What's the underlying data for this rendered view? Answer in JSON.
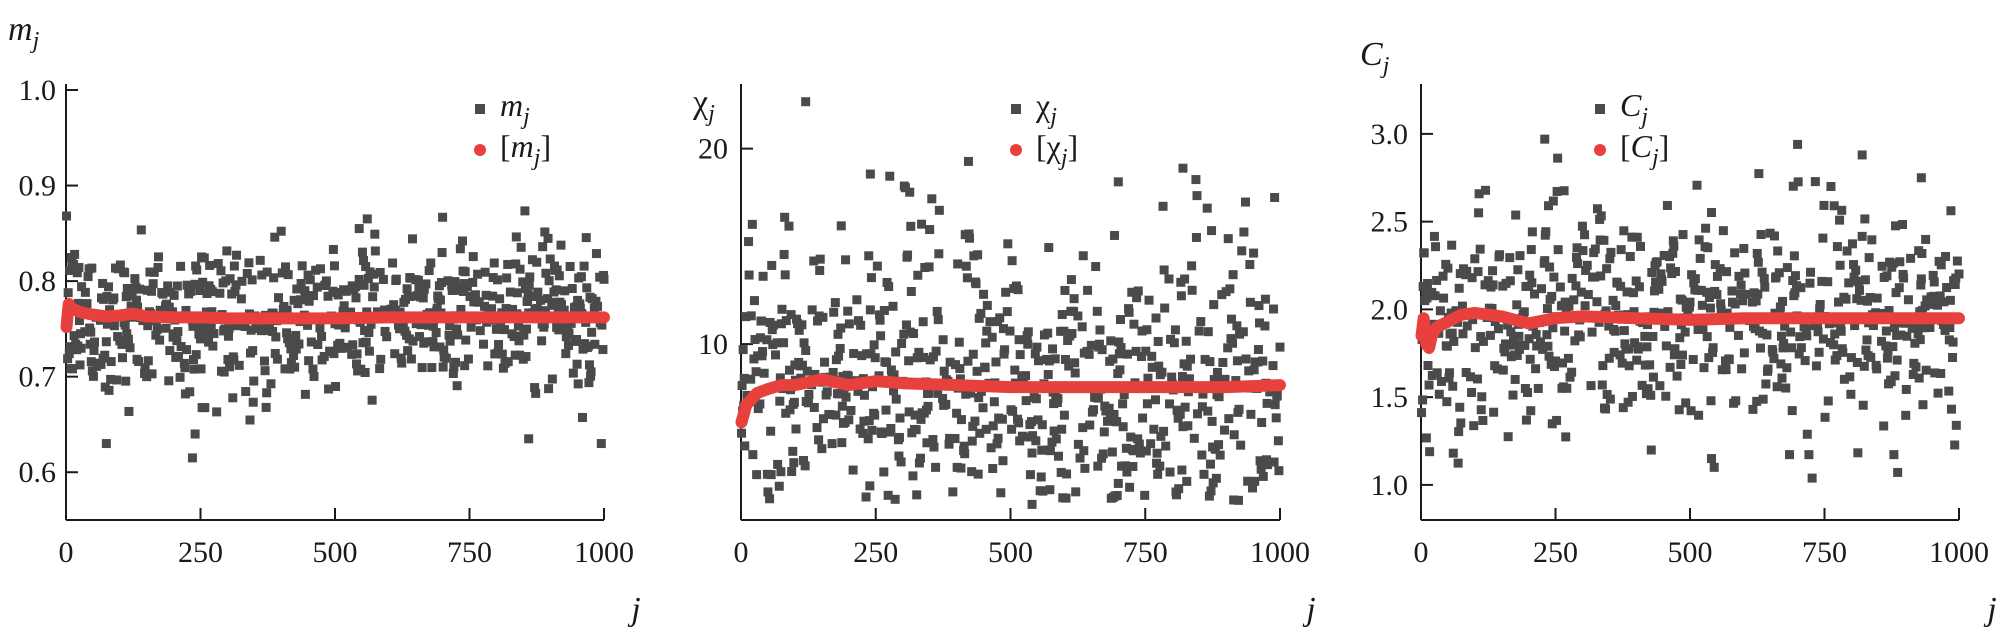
{
  "colors": {
    "scatter": "#4a4a4a",
    "running_mean": "#e8413d",
    "axis": "#1a1a1a"
  },
  "chart_data": [
    {
      "type": "scatter",
      "id": "m",
      "title": "",
      "xlabel": {
        "base": "j",
        "sub": ""
      },
      "ylabel": {
        "base": "m",
        "sub": "j",
        "italic": true
      },
      "xlim": [
        0,
        1000
      ],
      "ylim": [
        0.55,
        1.0
      ],
      "xticks": [
        0,
        250,
        500,
        750,
        1000
      ],
      "xtick_labels": [
        "0",
        "250",
        "500",
        "750",
        "1000"
      ],
      "yticks": [
        0.6,
        0.7,
        0.8,
        0.9,
        1.0
      ],
      "ytick_labels": [
        "0.6",
        "0.7",
        "0.8",
        "0.9",
        "1.0"
      ],
      "grid": false,
      "legend_position": "top-right",
      "series": [
        {
          "name": {
            "pre": "",
            "base": "m",
            "sub": "j",
            "post": "",
            "italic": true
          },
          "marker": "square",
          "n_points": 1000,
          "mean": 0.762,
          "spread": 0.045,
          "outliers": [
            [
              75,
              0.63
            ],
            [
              235,
              0.615
            ],
            [
              240,
              0.64
            ],
            [
              860,
              0.635
            ],
            [
              995,
              0.63
            ],
            [
              545,
              0.855
            ]
          ]
        },
        {
          "name": {
            "pre": "[",
            "base": "m",
            "sub": "j",
            "post": "]",
            "italic": true
          },
          "marker": "circle",
          "type": "line",
          "x": [
            1,
            5,
            10,
            20,
            30,
            50,
            75,
            100,
            125,
            150,
            200,
            250,
            300,
            400,
            500,
            600,
            700,
            800,
            900,
            1000
          ],
          "y": [
            0.752,
            0.776,
            0.772,
            0.769,
            0.767,
            0.765,
            0.763,
            0.764,
            0.766,
            0.763,
            0.762,
            0.762,
            0.761,
            0.761,
            0.761,
            0.762,
            0.762,
            0.762,
            0.762,
            0.762
          ]
        }
      ]
    },
    {
      "type": "scatter",
      "id": "chi",
      "title": "",
      "xlabel": {
        "base": "j",
        "sub": ""
      },
      "ylabel": {
        "base": "χ",
        "sub": "j",
        "italic": false
      },
      "xlim": [
        0,
        1000
      ],
      "ylim": [
        1,
        23
      ],
      "xticks": [
        0,
        250,
        500,
        750,
        1000
      ],
      "xtick_labels": [
        "0",
        "250",
        "500",
        "750",
        "1000"
      ],
      "yticks": [
        10,
        20
      ],
      "ytick_labels": [
        "10",
        "20"
      ],
      "grid": false,
      "legend_position": "top-right",
      "series": [
        {
          "name": {
            "pre": "",
            "base": "χ",
            "sub": "j",
            "post": "",
            "italic": false
          },
          "marker": "square",
          "n_points": 1000,
          "mean": 7.6,
          "spread": 3.2,
          "outliers": [
            [
              120,
              22.4
            ],
            [
              240,
              18.7
            ],
            [
              820,
              19.0
            ],
            [
              700,
              18.3
            ],
            [
              990,
              17.5
            ],
            [
              540,
              1.8
            ],
            [
              555,
              2.5
            ]
          ]
        },
        {
          "name": {
            "pre": "[",
            "base": "χ",
            "sub": "j",
            "post": "]",
            "italic": false
          },
          "marker": "circle",
          "type": "line",
          "x": [
            1,
            5,
            10,
            20,
            30,
            50,
            75,
            100,
            150,
            200,
            250,
            300,
            400,
            500,
            600,
            700,
            800,
            900,
            1000
          ],
          "y": [
            6.0,
            6.4,
            6.9,
            7.2,
            7.5,
            7.7,
            7.9,
            7.9,
            8.2,
            7.9,
            8.1,
            8.0,
            7.9,
            7.8,
            7.8,
            7.8,
            7.8,
            7.8,
            7.9
          ]
        }
      ]
    },
    {
      "type": "scatter",
      "id": "c",
      "title": "",
      "xlabel": {
        "base": "j",
        "sub": ""
      },
      "ylabel": {
        "base": "C",
        "sub": "j",
        "italic": true
      },
      "xlim": [
        0,
        1000
      ],
      "ylim": [
        0.8,
        3.25
      ],
      "xticks": [
        0,
        250,
        500,
        750,
        1000
      ],
      "xtick_labels": [
        "0",
        "250",
        "500",
        "750",
        "1000"
      ],
      "yticks": [
        1.0,
        1.5,
        2.0,
        2.5,
        3.0
      ],
      "ytick_labels": [
        "1.0",
        "1.5",
        "2.0",
        "2.5",
        "3.0"
      ],
      "grid": false,
      "legend_position": "top-right",
      "series": [
        {
          "name": {
            "pre": "",
            "base": "C",
            "sub": "j",
            "post": "",
            "italic": true
          },
          "marker": "square",
          "n_points": 1000,
          "mean": 1.95,
          "spread": 0.38,
          "outliers": [
            [
              230,
              2.97
            ],
            [
              700,
              2.94
            ],
            [
              820,
              2.88
            ],
            [
              545,
              1.1
            ],
            [
              540,
              1.15
            ],
            [
              930,
              2.75
            ]
          ]
        },
        {
          "name": {
            "pre": "[",
            "base": "C",
            "sub": "j",
            "post": "]",
            "italic": true
          },
          "marker": "circle",
          "type": "line",
          "x": [
            1,
            5,
            10,
            15,
            20,
            30,
            50,
            75,
            100,
            150,
            200,
            250,
            300,
            400,
            500,
            600,
            700,
            800,
            900,
            1000
          ],
          "y": [
            1.85,
            1.95,
            1.8,
            1.78,
            1.85,
            1.9,
            1.93,
            1.97,
            1.98,
            1.96,
            1.92,
            1.95,
            1.96,
            1.95,
            1.94,
            1.95,
            1.95,
            1.95,
            1.95,
            1.95
          ]
        }
      ]
    }
  ]
}
